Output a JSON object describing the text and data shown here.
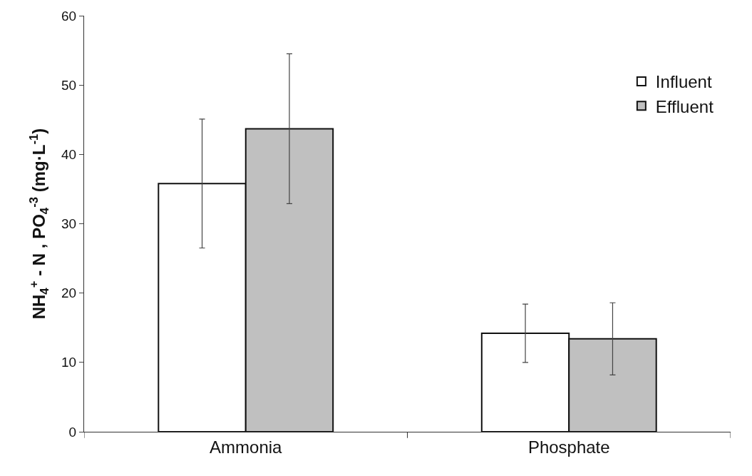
{
  "chart_data": {
    "type": "bar",
    "ylabel": "NH$_{4}$$^{+}$ - N , PO$_{4}$$^{-3}$ (mg·L$^{-1}$)",
    "categories": [
      "Ammonia",
      "Phosphate"
    ],
    "series": [
      {
        "name": "Influent",
        "color": "#ffffff",
        "values": [
          35.8,
          14.2
        ],
        "errors": [
          9.3,
          4.2
        ]
      },
      {
        "name": "Effluent",
        "color": "#c0c0c0",
        "values": [
          43.7,
          13.4
        ],
        "errors": [
          10.8,
          5.2
        ]
      }
    ],
    "ylim": [
      0,
      60
    ],
    "yticks": [
      0,
      10,
      20,
      30,
      40,
      50,
      60
    ],
    "legend": "top right"
  }
}
